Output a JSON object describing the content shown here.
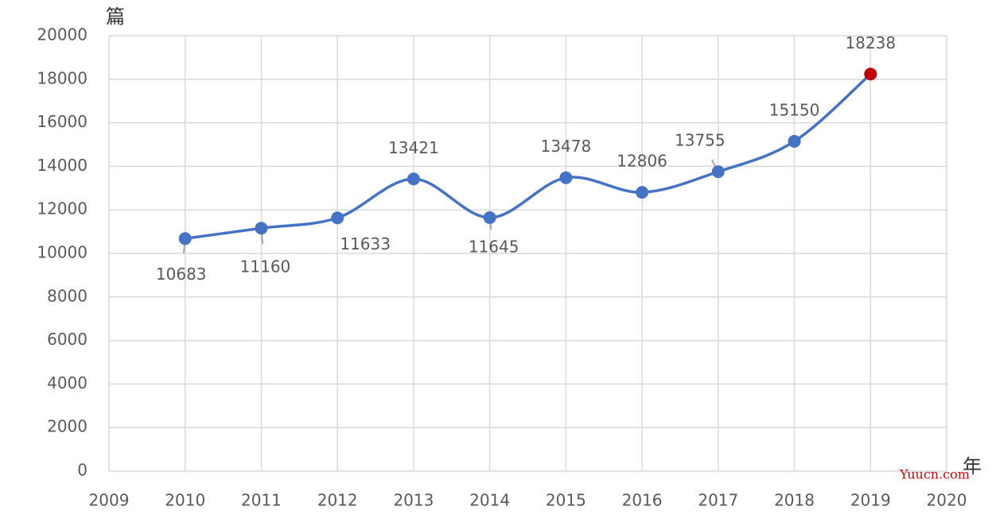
{
  "chart_data": {
    "type": "line",
    "y_label": "篇",
    "x_label": "年",
    "watermark": "Yuucn.com",
    "x": [
      2010,
      2011,
      2012,
      2013,
      2014,
      2015,
      2016,
      2017,
      2018,
      2019
    ],
    "series": [
      {
        "color": "#4472c4",
        "values": [
          10683,
          11160,
          11633,
          13421,
          11645,
          13478,
          12806,
          13755,
          15150,
          18238
        ],
        "marker_colors": [
          "#4472c4",
          "#4472c4",
          "#4472c4",
          "#4472c4",
          "#4472c4",
          "#4472c4",
          "#4472c4",
          "#4472c4",
          "#4472c4",
          "#c00000"
        ]
      }
    ],
    "xlim": [
      2009,
      2020
    ],
    "xticks": [
      2009,
      2010,
      2011,
      2012,
      2013,
      2014,
      2015,
      2016,
      2017,
      2018,
      2019,
      2020
    ],
    "ylim": [
      0,
      20000
    ],
    "yticks": [
      0,
      2000,
      4000,
      6000,
      8000,
      10000,
      12000,
      14000,
      16000,
      18000,
      20000
    ],
    "grid": true,
    "smooth": true
  }
}
